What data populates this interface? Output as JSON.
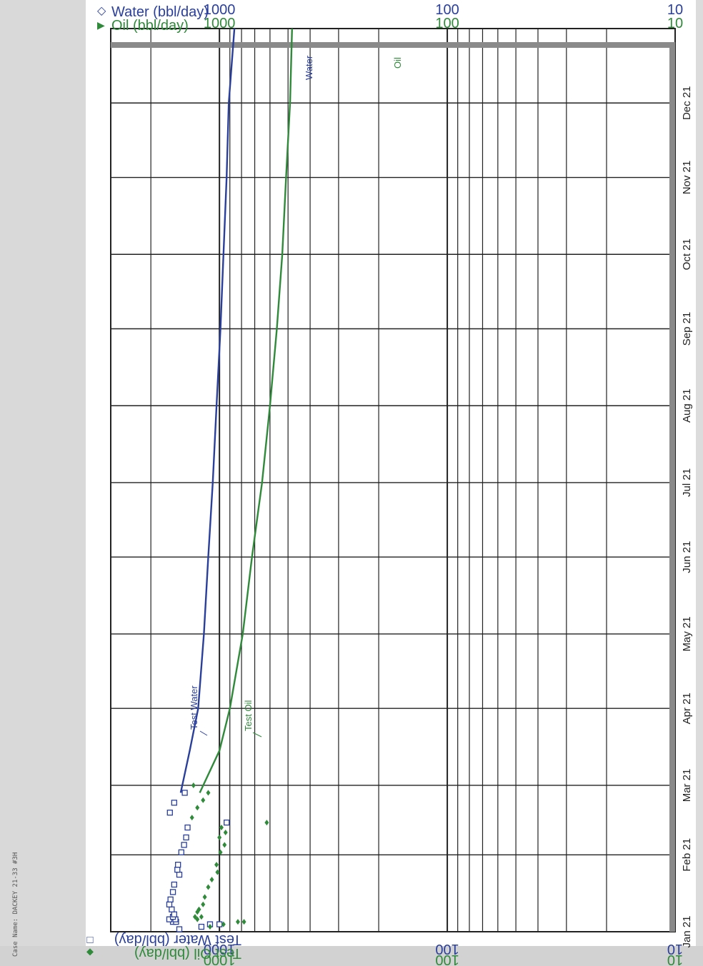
{
  "page": {
    "case_name": "Case Name: DACKEY 21-33 #3H"
  },
  "chart_data": {
    "type": "line",
    "orientation": "rotated-90",
    "x_axis": {
      "kind": "date",
      "range": [
        "2021-01-01",
        "2021-12-31"
      ],
      "tick_labels": [
        "Jan 21",
        "Feb 21",
        "Mar 21",
        "Apr 21",
        "May 21",
        "Jun 21",
        "Jul 21",
        "Aug 21",
        "Sep 21",
        "Oct 21",
        "Nov 21",
        "Dec 21"
      ]
    },
    "y_axis": {
      "scale": "log",
      "range": [
        10,
        3000
      ],
      "tick_labels": [
        "1000",
        "100",
        "10"
      ]
    },
    "legend_top": [
      {
        "symbol": "◇",
        "label": "Water (bbl/day)",
        "color": "#2a3f9c"
      },
      {
        "symbol": "▶",
        "label": "Oil (bbl/day)",
        "color": "#2f8a3a"
      }
    ],
    "legend_bottom": [
      {
        "symbol": "□",
        "label": "Test Water (bbl/day)",
        "color": "#2a3f9c"
      },
      {
        "symbol": "◆",
        "label": "Test Oil (bbl/day)",
        "color": "#2f8a3a"
      }
    ],
    "annotations": [
      "Water",
      "Oil",
      "Test Water",
      "Test Oil"
    ],
    "series": [
      {
        "name": "Water",
        "kind": "line",
        "color": "#2a3f9c",
        "points": [
          [
            "2021-02-26",
            1480
          ],
          [
            "2021-03-15",
            1350
          ],
          [
            "2021-04-01",
            1240
          ],
          [
            "2021-05-01",
            1170
          ],
          [
            "2021-06-01",
            1120
          ],
          [
            "2021-07-01",
            1070
          ],
          [
            "2021-08-01",
            1030
          ],
          [
            "2021-09-01",
            990
          ],
          [
            "2021-10-01",
            960
          ],
          [
            "2021-11-01",
            930
          ],
          [
            "2021-12-01",
            910
          ],
          [
            "2021-12-31",
            860
          ]
        ]
      },
      {
        "name": "Oil",
        "kind": "line",
        "color": "#2f8a3a",
        "points": [
          [
            "2021-02-26",
            1220
          ],
          [
            "2021-03-15",
            1000
          ],
          [
            "2021-04-01",
            900
          ],
          [
            "2021-05-01",
            790
          ],
          [
            "2021-06-01",
            720
          ],
          [
            "2021-07-01",
            650
          ],
          [
            "2021-08-01",
            600
          ],
          [
            "2021-09-01",
            560
          ],
          [
            "2021-10-01",
            530
          ],
          [
            "2021-11-01",
            510
          ],
          [
            "2021-12-01",
            490
          ],
          [
            "2021-12-31",
            480
          ]
        ]
      },
      {
        "name": "Test Water",
        "kind": "scatter",
        "marker": "square",
        "color": "#2a3f9c",
        "points": [
          [
            "2021-01-02",
            1500
          ],
          [
            "2021-01-03",
            1200
          ],
          [
            "2021-01-04",
            1100
          ],
          [
            "2021-01-04",
            1000
          ],
          [
            "2021-01-05",
            1600
          ],
          [
            "2021-01-05",
            1550
          ],
          [
            "2021-01-06",
            1660
          ],
          [
            "2021-01-06",
            1560
          ],
          [
            "2021-01-07",
            1600
          ],
          [
            "2021-01-08",
            1580
          ],
          [
            "2021-01-10",
            1620
          ],
          [
            "2021-01-12",
            1660
          ],
          [
            "2021-01-14",
            1640
          ],
          [
            "2021-01-17",
            1600
          ],
          [
            "2021-01-20",
            1580
          ],
          [
            "2021-01-24",
            1500
          ],
          [
            "2021-01-26",
            1530
          ],
          [
            "2021-01-28",
            1520
          ],
          [
            "2021-02-02",
            1470
          ],
          [
            "2021-02-05",
            1430
          ],
          [
            "2021-02-08",
            1400
          ],
          [
            "2021-02-12",
            1380
          ],
          [
            "2021-02-14",
            930
          ],
          [
            "2021-02-18",
            1650
          ],
          [
            "2021-02-22",
            1580
          ],
          [
            "2021-02-26",
            1420
          ]
        ]
      },
      {
        "name": "Test Oil",
        "kind": "scatter",
        "marker": "diamond",
        "color": "#2f8a3a",
        "points": [
          [
            "2021-01-03",
            1100
          ],
          [
            "2021-01-04",
            960
          ],
          [
            "2021-01-05",
            830
          ],
          [
            "2021-01-05",
            780
          ],
          [
            "2021-01-06",
            1250
          ],
          [
            "2021-01-07",
            1200
          ],
          [
            "2021-01-07",
            1280
          ],
          [
            "2021-01-09",
            1250
          ],
          [
            "2021-01-10",
            1230
          ],
          [
            "2021-01-12",
            1180
          ],
          [
            "2021-01-15",
            1160
          ],
          [
            "2021-01-19",
            1120
          ],
          [
            "2021-01-22",
            1080
          ],
          [
            "2021-01-25",
            1020
          ],
          [
            "2021-01-28",
            1030
          ],
          [
            "2021-02-02",
            990
          ],
          [
            "2021-02-05",
            950
          ],
          [
            "2021-02-08",
            1000
          ],
          [
            "2021-02-10",
            940
          ],
          [
            "2021-02-12",
            980
          ],
          [
            "2021-02-14",
            620
          ],
          [
            "2021-02-16",
            1320
          ],
          [
            "2021-02-20",
            1250
          ],
          [
            "2021-02-23",
            1180
          ],
          [
            "2021-02-26",
            1120
          ],
          [
            "2021-03-01",
            1300
          ]
        ]
      }
    ]
  }
}
